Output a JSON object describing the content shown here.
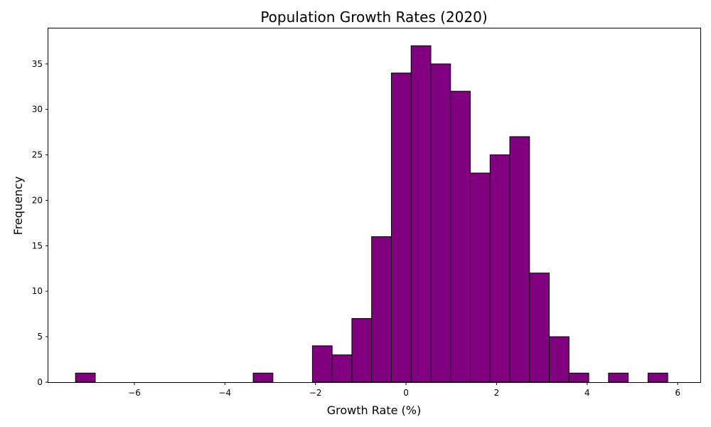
{
  "colors": {
    "bar_fill": "#800080",
    "bar_edge": "#000000"
  },
  "chart_data": {
    "type": "bar",
    "title": "Population Growth Rates (2020)",
    "xlabel": "Growth Rate (%)",
    "ylabel": "Frequency",
    "xlim": [
      -7.9,
      6.5
    ],
    "ylim": [
      0,
      38.9
    ],
    "bin_start": -7.3,
    "bin_width": 0.436,
    "values": [
      1,
      0,
      0,
      0,
      0,
      0,
      0,
      0,
      0,
      1,
      0,
      0,
      4,
      3,
      7,
      16,
      34,
      37,
      35,
      32,
      23,
      25,
      27,
      12,
      5,
      1,
      0,
      1,
      0,
      1
    ],
    "xticks": [
      {
        "v": -6,
        "label": "−6"
      },
      {
        "v": -4,
        "label": "−4"
      },
      {
        "v": -2,
        "label": "−2"
      },
      {
        "v": 0,
        "label": "0"
      },
      {
        "v": 2,
        "label": "2"
      },
      {
        "v": 4,
        "label": "4"
      },
      {
        "v": 6,
        "label": "6"
      }
    ],
    "yticks": [
      {
        "v": 0,
        "label": "0"
      },
      {
        "v": 5,
        "label": "5"
      },
      {
        "v": 10,
        "label": "10"
      },
      {
        "v": 15,
        "label": "15"
      },
      {
        "v": 20,
        "label": "20"
      },
      {
        "v": 25,
        "label": "25"
      },
      {
        "v": 30,
        "label": "30"
      },
      {
        "v": 35,
        "label": "35"
      }
    ],
    "grid": false,
    "legend": "none"
  }
}
